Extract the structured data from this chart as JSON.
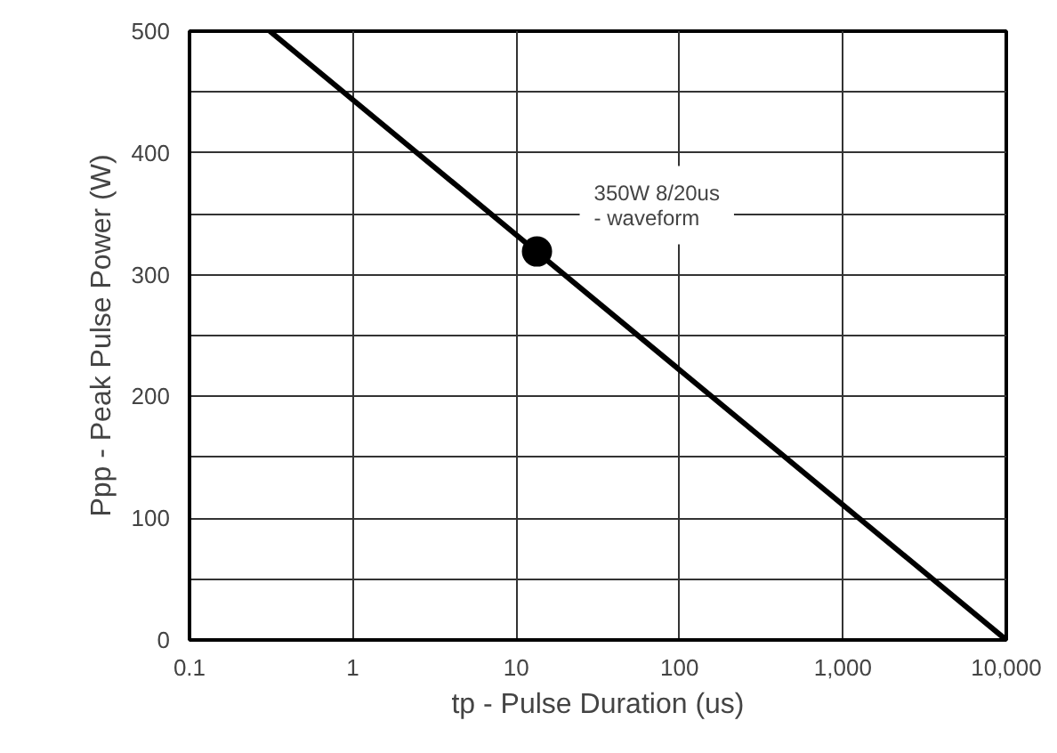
{
  "chart_data": {
    "type": "line",
    "xlabel": "tp - Pulse Duration (us)",
    "ylabel": "Ppp - Peak Pulse Power (W)",
    "log": "x",
    "grid": true,
    "marker": "none",
    "line_style": "solid",
    "xlim": [
      0.1,
      10000
    ],
    "ylim": [
      0,
      500
    ],
    "xticks": [
      0.1,
      1,
      10,
      100,
      {
        "value": 1000,
        "label": "1,000"
      },
      {
        "value": 10000,
        "label": "10,000"
      }
    ],
    "yticks": [
      0,
      {
        "value": 50,
        "label": null
      },
      100,
      {
        "value": 150,
        "label": null
      },
      200,
      {
        "value": 250,
        "label": null
      },
      300,
      {
        "value": 350,
        "label": null
      },
      400,
      {
        "value": 450,
        "label": null
      },
      500
    ],
    "series": [
      {
        "color": "#000000",
        "x": [
          0.31,
          10000
        ],
        "values": [
          500,
          0
        ]
      },
      {
        "type": "scatter",
        "color": "#000000",
        "marker": "circle",
        "x": [
          13.4
        ],
        "values": [
          319
        ]
      }
    ],
    "annotations": [
      {
        "text": "350W 8/20us\n- waveform",
        "x": 13.4,
        "y": 319
      }
    ]
  }
}
